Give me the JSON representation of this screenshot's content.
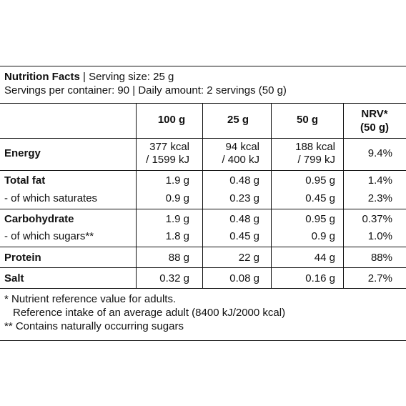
{
  "header": {
    "title": "Nutrition Facts",
    "serving_size": "| Serving size: 25 g",
    "servings_line": "Servings per container: 90 | Daily amount: 2 servings (50 g)"
  },
  "columns": [
    "100 g",
    "25 g",
    "50 g",
    "NRV*",
    "(50 g)"
  ],
  "rows": [
    {
      "name": "Energy",
      "v1a": "377 kcal",
      "v1b": "/ 1599 kJ",
      "v2a": "94 kcal",
      "v2b": "/ 400 kJ",
      "v3a": "188 kcal",
      "v3b": "/ 799 kJ",
      "nrv": "9.4%"
    },
    {
      "name": "Total fat",
      "v1": "1.9 g",
      "v2": "0.48 g",
      "v3": "0.95 g",
      "nrv": "1.4%"
    },
    {
      "name": "- of which saturates",
      "v1": "0.9 g",
      "v2": "0.23 g",
      "v3": "0.45 g",
      "nrv": "2.3%"
    },
    {
      "name": "Carbohydrate",
      "v1": "1.9 g",
      "v2": "0.48 g",
      "v3": "0.95 g",
      "nrv": "0.37%"
    },
    {
      "name": "- of which sugars**",
      "v1": "1.8 g",
      "v2": "0.45 g",
      "v3": "0.9 g",
      "nrv": "1.0%"
    },
    {
      "name": "Protein",
      "v1": "88 g",
      "v2": "22 g",
      "v3": "44 g",
      "nrv": "88%"
    },
    {
      "name": "Salt",
      "v1": "0.32 g",
      "v2": "0.08 g",
      "v3": "0.16 g",
      "nrv": "2.7%"
    }
  ],
  "footnotes": [
    "* Nutrient reference value for adults.",
    "  Reference intake of an average adult (8400 kJ/2000 kcal)",
    "** Contains naturally occurring sugars"
  ]
}
